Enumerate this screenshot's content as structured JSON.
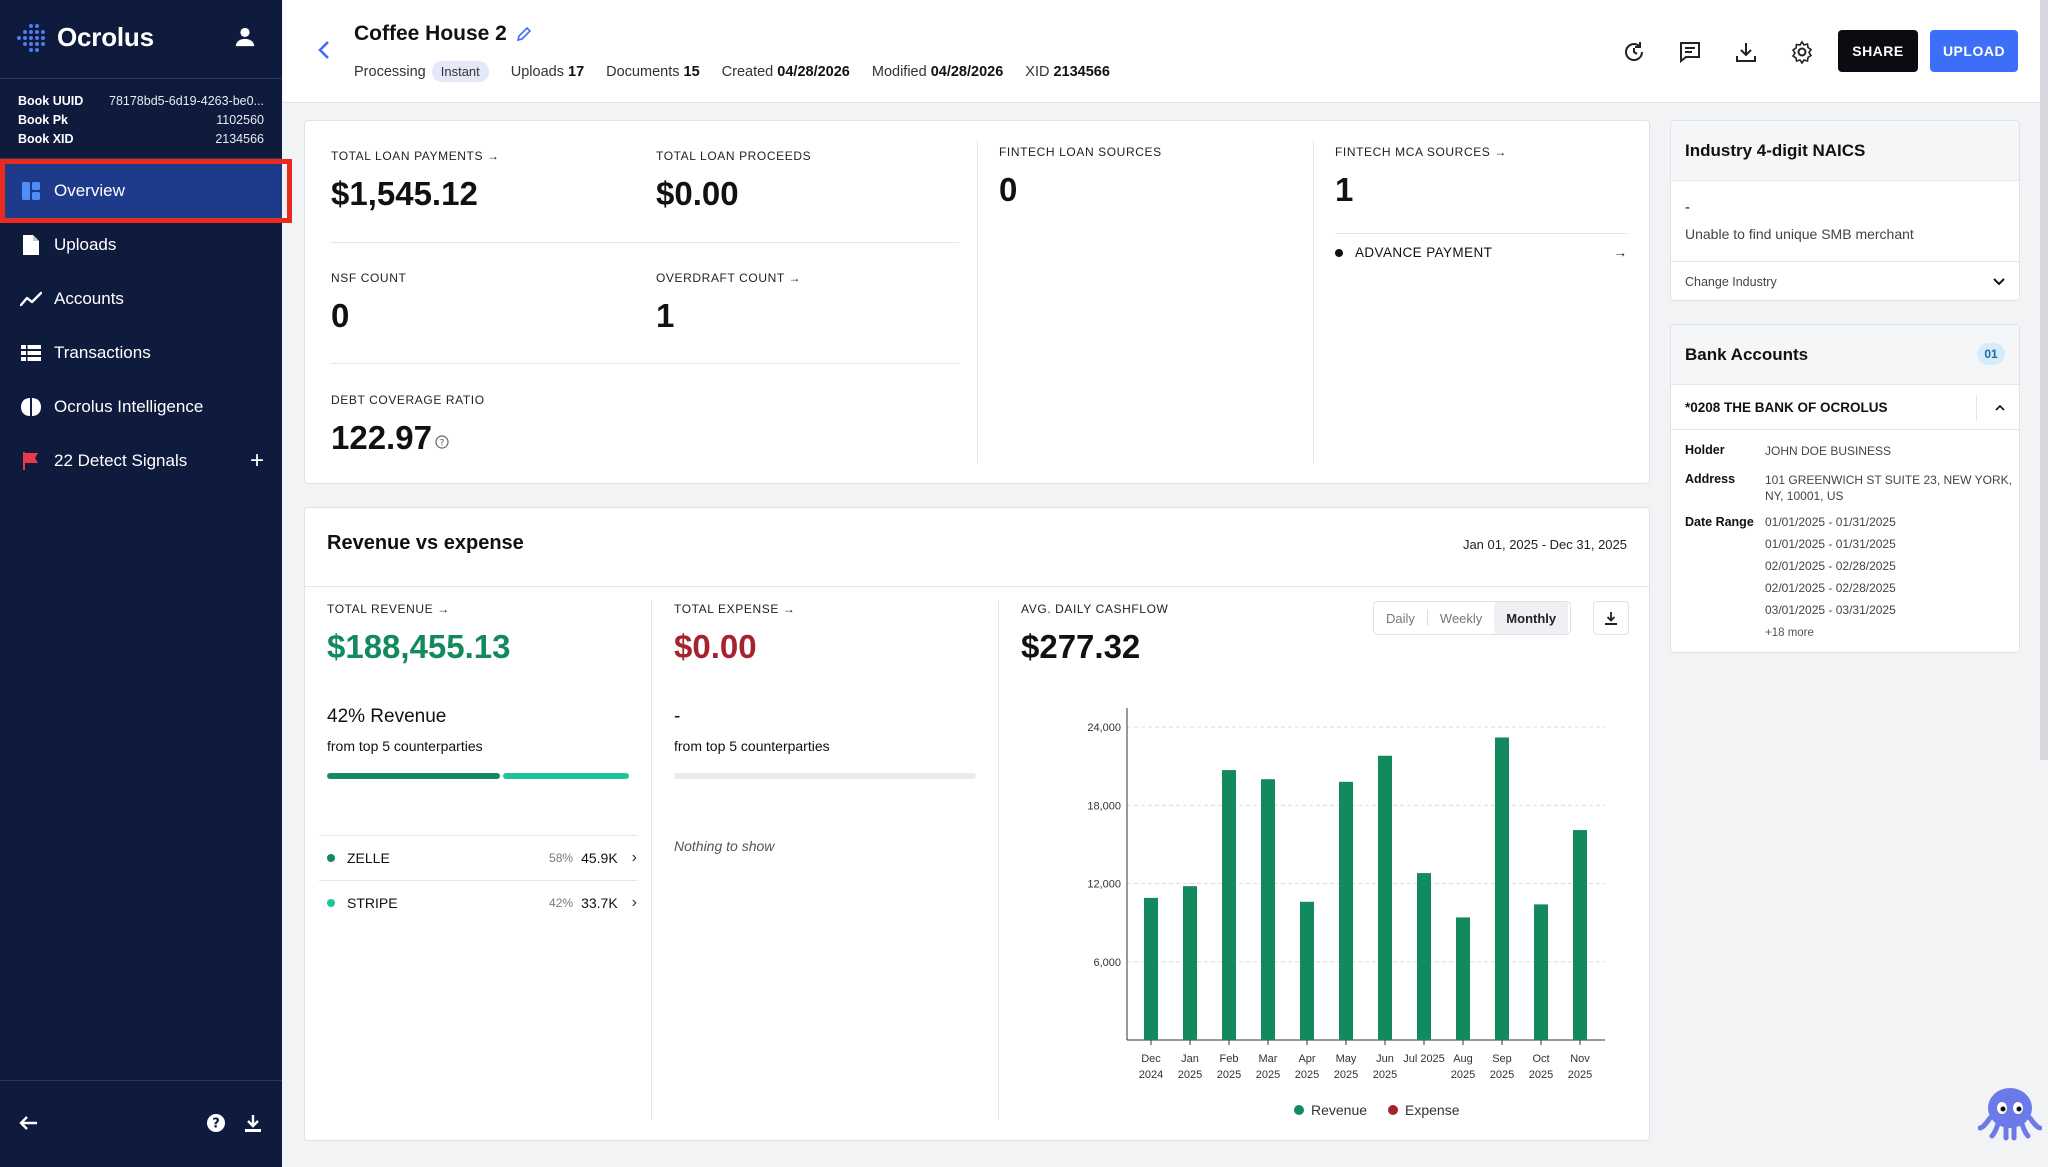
{
  "app": {
    "name": "Ocrolus"
  },
  "sidebar": {
    "meta": [
      {
        "label": "Book UUID",
        "value": "78178bd5-6d19-4263-be0..."
      },
      {
        "label": "Book Pk",
        "value": "1102560"
      },
      {
        "label": "Book XID",
        "value": "2134566"
      }
    ],
    "items": [
      {
        "label": "Overview",
        "icon": "dashboard-icon",
        "active": true
      },
      {
        "label": "Uploads",
        "icon": "document-icon"
      },
      {
        "label": "Accounts",
        "icon": "trend-icon"
      },
      {
        "label": "Transactions",
        "icon": "table-icon"
      },
      {
        "label": "Ocrolus Intelligence",
        "icon": "brain-icon"
      },
      {
        "label": "22 Detect Signals",
        "icon": "flag-icon"
      }
    ],
    "colors": {
      "background": "#0f1b3d",
      "active": "#1e3a8a",
      "highlight": "#e82a1f",
      "flag": "#e8394f"
    }
  },
  "header": {
    "title": "Coffee House 2",
    "processing_label": "Processing",
    "processing_value": "Instant",
    "uploads_label": "Uploads",
    "uploads_value": "17",
    "documents_label": "Documents",
    "documents_value": "15",
    "created_label": "Created",
    "created_value": "04/28/2026",
    "modified_label": "Modified",
    "modified_value": "04/28/2026",
    "xid_label": "XID",
    "xid_value": "2134566",
    "share_label": "SHARE",
    "upload_label": "UPLOAD",
    "colors": {
      "share": "#0b0b12",
      "upload": "#3d6ef7"
    }
  },
  "summary": {
    "total_loan_payments": {
      "label": "TOTAL LOAN PAYMENTS",
      "value": "$1,545.12"
    },
    "total_loan_proceeds": {
      "label": "TOTAL LOAN PROCEEDS",
      "value": "$0.00"
    },
    "nsf_count": {
      "label": "NSF COUNT",
      "value": "0"
    },
    "overdraft_count": {
      "label": "OVERDRAFT COUNT",
      "value": "1"
    },
    "debt_coverage_ratio": {
      "label": "DEBT COVERAGE RATIO",
      "value": "122.97"
    },
    "fintech_loan_sources": {
      "label": "FINTECH LOAN SOURCES",
      "value": "0"
    },
    "fintech_mca_sources": {
      "label": "FINTECH MCA SOURCES",
      "value": "1"
    },
    "mca_items": [
      {
        "label": "ADVANCE PAYMENT"
      }
    ]
  },
  "revenue_expense": {
    "title": "Revenue vs expense",
    "date_range": "Jan 01, 2025 - Dec 31, 2025",
    "total_revenue": {
      "label": "TOTAL REVENUE",
      "value": "$188,455.13",
      "color": "#138a5e"
    },
    "total_expense": {
      "label": "TOTAL EXPENSE",
      "value": "$0.00",
      "color": "#a5232e"
    },
    "avg_daily_cashflow": {
      "label": "AVG. DAILY CASHFLOW",
      "value": "$277.32"
    },
    "revenue_concentration": {
      "title": "42% Revenue",
      "subtitle": "from top 5 counterparties"
    },
    "expense_concentration": {
      "title": "-",
      "subtitle": "from top 5 counterparties",
      "empty": "Nothing to show"
    },
    "revenue_bar_split": [
      0.58,
      0.42
    ],
    "counterparties": [
      {
        "name": "ZELLE",
        "pct": "58%",
        "amount": "45.9K",
        "color": "#138a5e"
      },
      {
        "name": "STRIPE",
        "pct": "42%",
        "amount": "33.7K",
        "color": "#1ec49a"
      }
    ],
    "granularity": {
      "options": [
        "Daily",
        "Weekly",
        "Monthly"
      ],
      "selected": "Monthly"
    }
  },
  "chart_data": {
    "type": "bar",
    "categories": [
      [
        "Dec",
        "2024"
      ],
      [
        "Jan",
        "2025"
      ],
      [
        "Feb",
        "2025"
      ],
      [
        "Mar",
        "2025"
      ],
      [
        "Apr",
        "2025"
      ],
      [
        "May",
        "2025"
      ],
      [
        "Jun",
        "2025"
      ],
      [
        "Jul 2025",
        ""
      ],
      [
        "Aug",
        "2025"
      ],
      [
        "Sep",
        "2025"
      ],
      [
        "Oct",
        "2025"
      ],
      [
        "Nov",
        "2025"
      ]
    ],
    "series": [
      {
        "name": "Revenue",
        "color": "#138a5e",
        "values": [
          10900,
          11800,
          20700,
          20000,
          10600,
          19800,
          21800,
          12800,
          9400,
          23200,
          10400,
          16100
        ]
      },
      {
        "name": "Expense",
        "color": "#a5232e",
        "values": [
          0,
          0,
          0,
          0,
          0,
          0,
          0,
          0,
          0,
          0,
          0,
          0
        ]
      }
    ],
    "y_ticks": [
      "6,000",
      "12,000",
      "18,000",
      "24,000"
    ],
    "y_tick_values": [
      6000,
      12000,
      18000,
      24000
    ],
    "ylim": [
      0,
      25000
    ],
    "grid": true,
    "legend": "bottom-center"
  },
  "naics": {
    "title": "Industry 4-digit NAICS",
    "code": "-",
    "message": "Unable to find unique SMB merchant",
    "change_label": "Change Industry"
  },
  "bank_accounts": {
    "title": "Bank Accounts",
    "count": "01",
    "account": {
      "name": "*0208 THE BANK OF OCROLUS",
      "holder_label": "Holder",
      "holder": "JOHN DOE BUSINESS",
      "address_label": "Address",
      "address": "101 GREENWICH ST SUITE 23, NEW YORK, NY, 10001, US",
      "date_range_label": "Date Range",
      "date_ranges": [
        "01/01/2025 - 01/31/2025",
        "01/01/2025 - 01/31/2025",
        "02/01/2025 - 02/28/2025",
        "02/01/2025 - 02/28/2025",
        "03/01/2025 - 03/31/2025"
      ],
      "more": "+18 more"
    }
  }
}
